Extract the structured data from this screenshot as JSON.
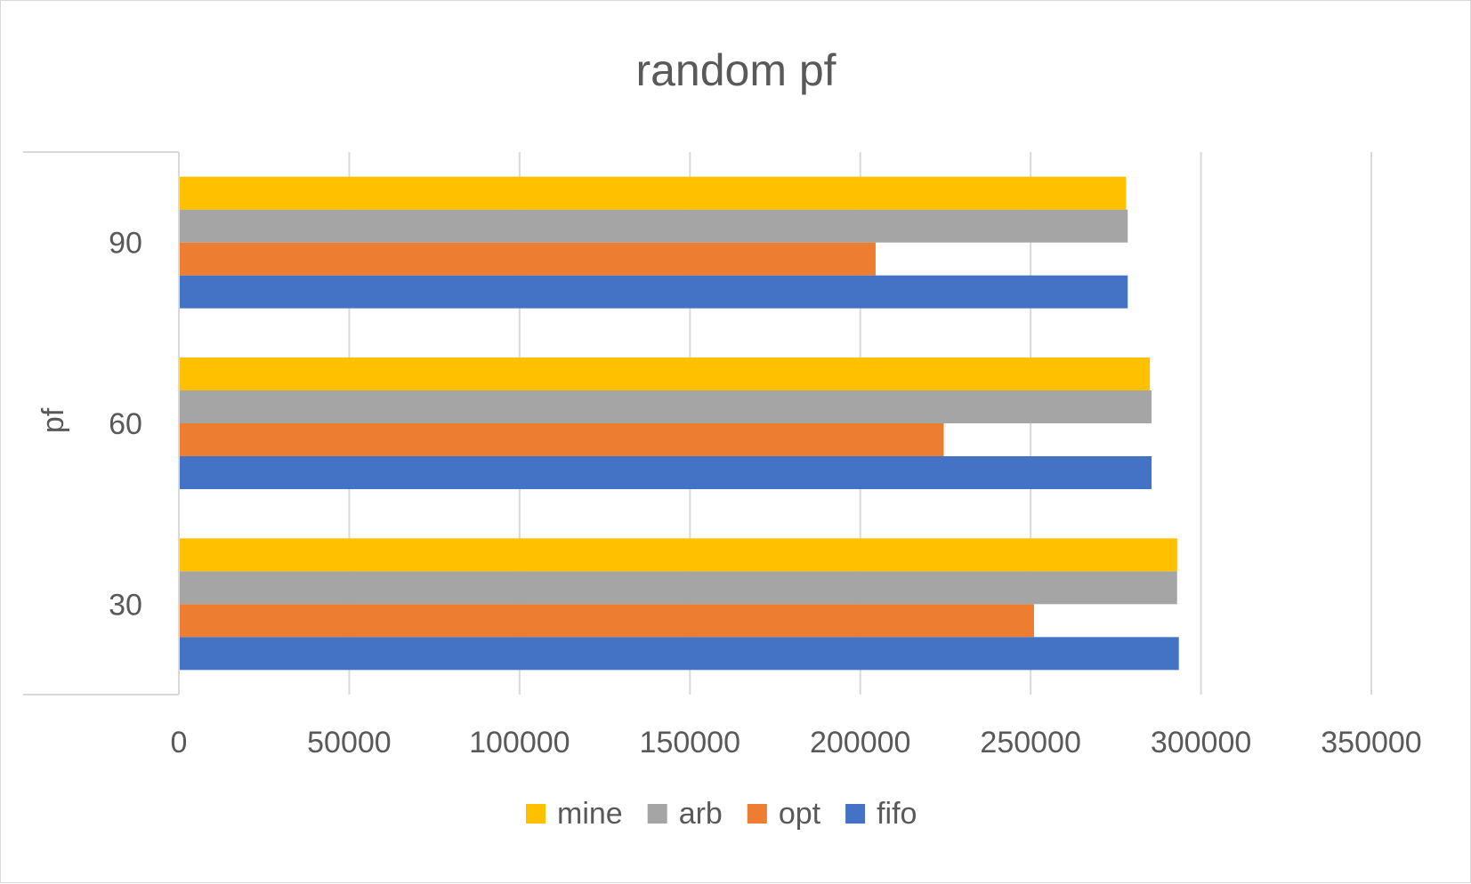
{
  "chart_data": {
    "type": "bar",
    "orientation": "horizontal",
    "title": "random pf",
    "xlabel": "",
    "ylabel": "pf",
    "categories": [
      "30",
      "60",
      "90"
    ],
    "xlim": [
      0,
      350000
    ],
    "xticks": [
      "0",
      "50000",
      "100000",
      "150000",
      "200000",
      "250000",
      "300000",
      "350000"
    ],
    "grid": true,
    "legend_position": "bottom",
    "series": [
      {
        "name": "fifo",
        "color": "#4472C4",
        "values": [
          293500,
          285500,
          278500
        ]
      },
      {
        "name": "opt",
        "color": "#ED7D31",
        "values": [
          251000,
          224500,
          204500
        ]
      },
      {
        "name": "arb",
        "color": "#A5A5A5",
        "values": [
          293000,
          285500,
          278500
        ]
      },
      {
        "name": "mine",
        "color": "#FFC000",
        "values": [
          293000,
          285000,
          278000
        ]
      }
    ],
    "legend_order": [
      "mine",
      "arb",
      "opt",
      "fifo"
    ]
  }
}
